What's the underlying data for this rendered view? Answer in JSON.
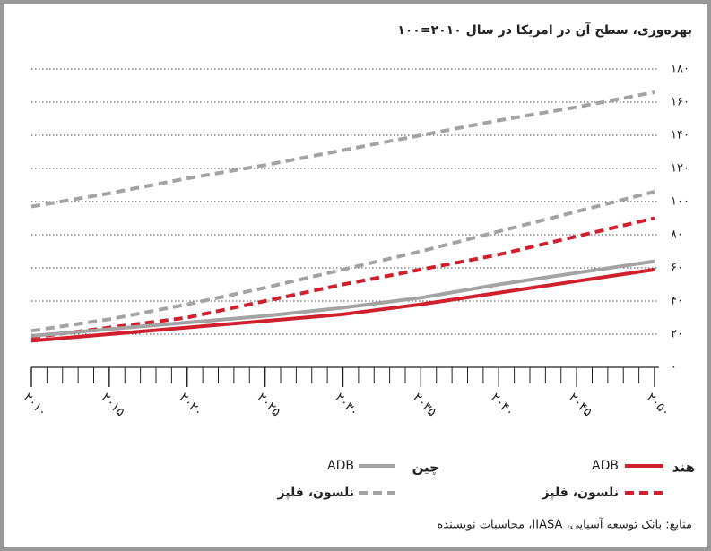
{
  "chart_data": {
    "type": "line",
    "title": "بهره‌وری، سطح آن در امریکا در سال ۲۰۱۰=۱۰۰",
    "source": "منابع: بانک توسعه آسیایی، IIASA، محاسبات نویسنده",
    "x": [
      2010,
      2015,
      2020,
      2025,
      2030,
      2035,
      2040,
      2045,
      2050
    ],
    "xlim": [
      2010,
      2050
    ],
    "xticks": [
      {
        "value": 2010,
        "label": "۲۰۱۰"
      },
      {
        "value": 2015,
        "label": "۲۰۱۵"
      },
      {
        "value": 2020,
        "label": "۲۰۲۰"
      },
      {
        "value": 2025,
        "label": "۲۰۲۵"
      },
      {
        "value": 2030,
        "label": "۲۰۳۰"
      },
      {
        "value": 2035,
        "label": "۲۰۳۵"
      },
      {
        "value": 2040,
        "label": "۲۰۴۰"
      },
      {
        "value": 2045,
        "label": "۲۰۴۵"
      },
      {
        "value": 2050,
        "label": "۲۰۵۰"
      }
    ],
    "ylim": [
      0,
      180
    ],
    "yticks": [
      {
        "value": 0,
        "label": "۰"
      },
      {
        "value": 20,
        "label": "۲۰"
      },
      {
        "value": 40,
        "label": "۴۰"
      },
      {
        "value": 60,
        "label": "۶۰"
      },
      {
        "value": 80,
        "label": "۸۰"
      },
      {
        "value": 100,
        "label": "۱۰۰"
      },
      {
        "value": 120,
        "label": "۱۲۰"
      },
      {
        "value": 140,
        "label": "۱۴۰"
      },
      {
        "value": 160,
        "label": "۱۶۰"
      },
      {
        "value": 180,
        "label": "۱۸۰"
      }
    ],
    "grid": true,
    "series": [
      {
        "group": "هند",
        "name": "ADB",
        "color": "#d0202e",
        "dashed": false,
        "values": [
          16,
          20,
          24,
          28,
          32,
          38,
          45,
          52,
          59
        ]
      },
      {
        "group": "هند",
        "name": "نلسون، فلپز",
        "color": "#d0202e",
        "dashed": true,
        "values": [
          18,
          24,
          30,
          40,
          50,
          59,
          68,
          79,
          90
        ]
      },
      {
        "group": "چین",
        "name": "ADB",
        "color": "#a3a3a3",
        "dashed": false,
        "values": [
          19,
          23,
          27,
          31,
          36,
          42,
          50,
          57,
          64
        ]
      },
      {
        "group": "چین",
        "name": "نلسون، فلپز",
        "color": "#a3a3a3",
        "dashed": true,
        "values": [
          22,
          29,
          38,
          48,
          59,
          70,
          82,
          94,
          106
        ]
      },
      {
        "group": "چین",
        "name": "نلسون، فلپز",
        "color": "#a3a3a3",
        "dashed": true,
        "values": [
          97,
          105,
          114,
          122,
          131,
          140,
          149,
          157,
          166
        ]
      }
    ]
  }
}
